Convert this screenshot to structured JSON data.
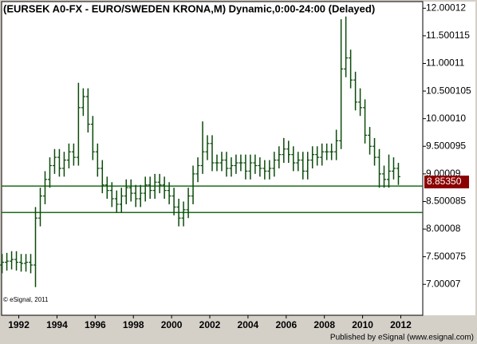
{
  "chart_data": {
    "type": "ohlc",
    "title": "(EURSEK A0-FX - EURO/SWEDEN KRONA,M) Dynamic,0:00-24:00 (Delayed)",
    "watermark": "© eSignal, 2011",
    "footer": "Published by eSignal (www.esignal.com)",
    "color": "#0a4a0a",
    "x": [
      1991.125,
      1991.375,
      1991.625,
      1991.875,
      1992.125,
      1992.375,
      1992.625,
      1992.875,
      1993.125,
      1993.375,
      1993.625,
      1993.875,
      1994.125,
      1994.375,
      1994.625,
      1994.875,
      1995.125,
      1995.375,
      1995.625,
      1995.875,
      1996.125,
      1996.375,
      1996.625,
      1996.875,
      1997.125,
      1997.375,
      1997.625,
      1997.875,
      1998.125,
      1998.375,
      1998.625,
      1998.875,
      1999.125,
      1999.375,
      1999.625,
      1999.875,
      2000.125,
      2000.375,
      2000.625,
      2000.875,
      2001.125,
      2001.375,
      2001.625,
      2001.875,
      2002.125,
      2002.375,
      2002.625,
      2002.875,
      2003.125,
      2003.375,
      2003.625,
      2003.875,
      2004.125,
      2004.375,
      2004.625,
      2004.875,
      2005.125,
      2005.375,
      2005.625,
      2005.875,
      2006.125,
      2006.375,
      2006.625,
      2006.875,
      2007.125,
      2007.375,
      2007.625,
      2007.875,
      2008.125,
      2008.375,
      2008.625,
      2008.875,
      2009.125,
      2009.375,
      2009.625,
      2009.875,
      2010.125,
      2010.375,
      2010.625,
      2010.875,
      2011.125,
      2011.375,
      2011.625,
      2011.875
    ],
    "open": [
      7.35,
      7.4,
      7.42,
      7.45,
      7.4,
      7.38,
      7.4,
      7.35,
      8.2,
      8.6,
      8.9,
      9.15,
      9.3,
      9.1,
      9.25,
      9.4,
      9.3,
      10.2,
      10.4,
      9.9,
      9.4,
      9.1,
      8.8,
      8.7,
      8.55,
      8.45,
      8.6,
      8.75,
      8.65,
      8.55,
      8.65,
      8.8,
      8.7,
      8.85,
      8.8,
      8.7,
      8.6,
      8.4,
      8.2,
      8.35,
      8.6,
      9.0,
      9.15,
      9.4,
      9.55,
      9.2,
      9.2,
      9.25,
      9.1,
      9.15,
      9.2,
      9.2,
      9.05,
      9.2,
      9.15,
      9.1,
      9.05,
      9.1,
      9.25,
      9.35,
      9.45,
      9.35,
      9.2,
      9.25,
      9.05,
      9.25,
      9.35,
      9.3,
      9.4,
      9.4,
      9.4,
      9.6,
      10.9,
      11.1,
      10.7,
      10.3,
      10.2,
      9.7,
      9.5,
      9.3,
      9.0,
      8.9,
      9.05,
      9.1
    ],
    "high": [
      7.55,
      7.57,
      7.6,
      7.6,
      7.55,
      7.55,
      7.55,
      8.4,
      8.75,
      9.05,
      9.3,
      9.45,
      9.45,
      9.4,
      9.55,
      9.55,
      10.65,
      10.55,
      10.55,
      10.05,
      9.55,
      9.25,
      8.95,
      8.85,
      8.7,
      8.75,
      8.9,
      8.9,
      8.8,
      8.8,
      8.95,
      8.95,
      9.0,
      9.0,
      8.95,
      8.85,
      8.75,
      8.55,
      8.5,
      8.75,
      9.15,
      9.3,
      9.95,
      9.7,
      9.7,
      9.35,
      9.4,
      9.4,
      9.3,
      9.35,
      9.35,
      9.35,
      9.35,
      9.35,
      9.3,
      9.25,
      9.25,
      9.4,
      9.5,
      9.65,
      9.6,
      9.5,
      9.4,
      9.4,
      9.4,
      9.5,
      9.5,
      9.55,
      9.55,
      9.55,
      9.8,
      11.8,
      11.85,
      11.25,
      10.85,
      10.55,
      10.35,
      9.85,
      9.65,
      9.45,
      9.15,
      9.35,
      9.3,
      9.2
    ],
    "low": [
      7.2,
      7.25,
      7.27,
      7.25,
      7.23,
      7.23,
      7.2,
      6.95,
      8.05,
      8.45,
      8.75,
      9.0,
      8.95,
      8.95,
      9.1,
      9.15,
      9.15,
      10.05,
      9.75,
      9.25,
      8.95,
      8.65,
      8.55,
      8.4,
      8.3,
      8.3,
      8.45,
      8.5,
      8.4,
      8.4,
      8.5,
      8.55,
      8.55,
      8.65,
      8.55,
      8.45,
      8.25,
      8.05,
      8.05,
      8.2,
      8.45,
      8.85,
      9.0,
      9.25,
      9.05,
      9.05,
      9.05,
      8.95,
      8.95,
      9.0,
      9.05,
      8.9,
      8.9,
      9.0,
      8.95,
      8.9,
      8.9,
      8.95,
      9.1,
      9.2,
      9.2,
      9.05,
      9.05,
      8.9,
      8.9,
      9.1,
      9.15,
      9.15,
      9.25,
      9.25,
      9.25,
      9.45,
      10.75,
      10.55,
      10.15,
      10.05,
      9.55,
      9.35,
      9.15,
      8.75,
      8.75,
      8.75,
      8.9,
      8.8
    ],
    "close": [
      7.4,
      7.42,
      7.45,
      7.4,
      7.38,
      7.4,
      7.35,
      8.2,
      8.6,
      8.9,
      9.15,
      9.3,
      9.1,
      9.25,
      9.4,
      9.3,
      10.2,
      10.4,
      9.9,
      9.4,
      9.1,
      8.8,
      8.7,
      8.55,
      8.45,
      8.6,
      8.75,
      8.65,
      8.55,
      8.65,
      8.8,
      8.7,
      8.85,
      8.8,
      8.7,
      8.6,
      8.4,
      8.2,
      8.35,
      8.6,
      9.0,
      9.15,
      9.4,
      9.55,
      9.2,
      9.2,
      9.25,
      9.1,
      9.15,
      9.2,
      9.2,
      9.05,
      9.2,
      9.15,
      9.1,
      9.05,
      9.1,
      9.25,
      9.35,
      9.45,
      9.35,
      9.2,
      9.25,
      9.05,
      9.25,
      9.35,
      9.3,
      9.4,
      9.4,
      9.4,
      9.6,
      10.9,
      11.1,
      10.7,
      10.3,
      10.2,
      9.7,
      9.5,
      9.3,
      9.0,
      8.9,
      9.05,
      9.1,
      8.95
    ],
    "last_price": {
      "value": 8.8535,
      "label": "8.85350"
    },
    "last_price_color": "#8b0000",
    "reference_lines": [
      8.78,
      8.3
    ],
    "reference_color": "#1e6b1e",
    "xlim": [
      1991.1,
      2013.15
    ],
    "xticks": [
      1992,
      1994,
      1996,
      1998,
      2000,
      2002,
      2004,
      2006,
      2008,
      2010,
      2012
    ],
    "ylim": [
      6.44,
      12.12
    ],
    "yticks": [
      {
        "value": 12.00012,
        "label": "12.00012"
      },
      {
        "value": 11.500115,
        "label": "11.500115"
      },
      {
        "value": 11.00011,
        "label": "11.00011"
      },
      {
        "value": 10.500105,
        "label": "10.500105"
      },
      {
        "value": 10.0001,
        "label": "10.00010"
      },
      {
        "value": 9.500095,
        "label": "9.500095"
      },
      {
        "value": 9.00009,
        "label": "9.00009"
      },
      {
        "value": 8.500085,
        "label": "8.500085"
      },
      {
        "value": 8.00008,
        "label": "8.00008"
      },
      {
        "value": 7.500075,
        "label": "7.500075"
      },
      {
        "value": 7.00007,
        "label": "7.00007"
      }
    ]
  }
}
